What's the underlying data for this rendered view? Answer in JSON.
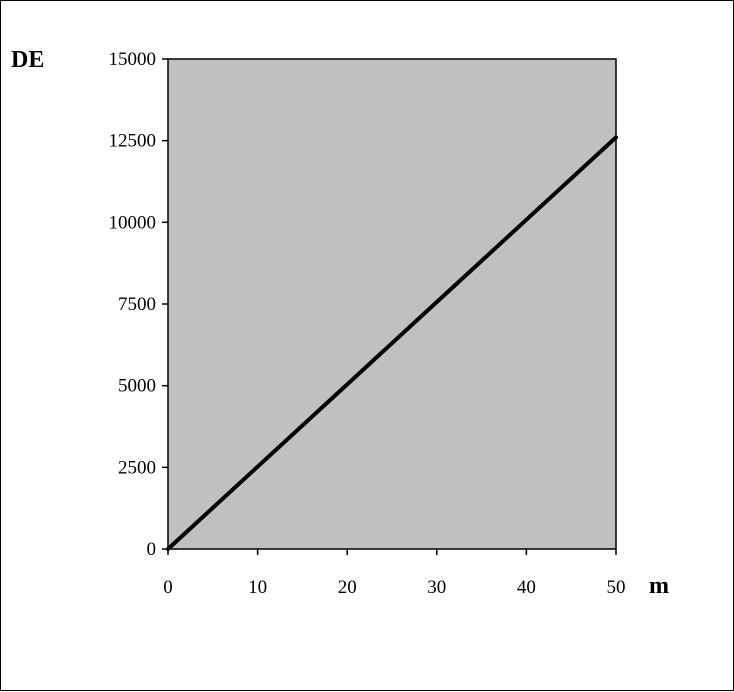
{
  "chart_data": {
    "type": "line",
    "title": "",
    "xlabel": "m",
    "ylabel": "DE",
    "xlim": [
      0,
      50
    ],
    "ylim": [
      0,
      15000
    ],
    "x_ticks": [
      "0",
      "10",
      "20",
      "30",
      "40",
      "50"
    ],
    "y_ticks": [
      "0",
      "2500",
      "5000",
      "7500",
      "10000",
      "12500",
      "15000"
    ],
    "grid": false,
    "legend": "none",
    "plot_background": "#c0c0c0",
    "series": [
      {
        "color": "#000000",
        "x": [
          0,
          10,
          20,
          30,
          40,
          50
        ],
        "y": [
          0,
          2520,
          5040,
          7560,
          10080,
          12600
        ]
      }
    ]
  }
}
